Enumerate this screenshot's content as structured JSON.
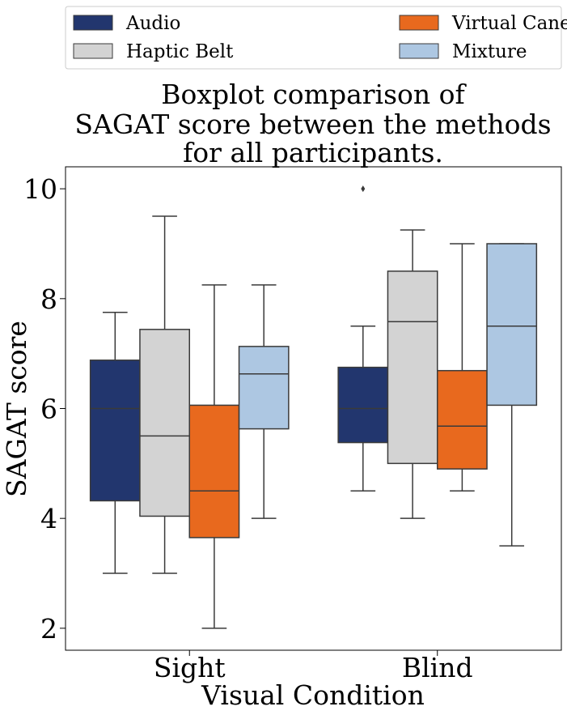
{
  "chart_data": {
    "type": "boxplot",
    "title_lines": [
      "Boxplot comparison of",
      "SAGAT score between the methods",
      "for all participants."
    ],
    "xlabel": "Visual Condition",
    "ylabel": "SAGAT score",
    "categories": [
      "Sight",
      "Blind"
    ],
    "ylim": [
      1.6,
      10.4
    ],
    "yticks": [
      2,
      4,
      6,
      8,
      10
    ],
    "grid": false,
    "legend_position": "top",
    "series": [
      {
        "name": "Audio",
        "color": "#22366e",
        "boxes": [
          {
            "whisker_low": 3.0,
            "q1": 4.32,
            "median": 6.0,
            "q3": 6.88,
            "whisker_high": 7.75,
            "outliers": []
          },
          {
            "whisker_low": 4.5,
            "q1": 5.38,
            "median": 6.0,
            "q3": 6.75,
            "whisker_high": 7.5,
            "outliers": [
              10.0
            ]
          }
        ]
      },
      {
        "name": "Haptic Belt",
        "color": "#d3d3d3",
        "boxes": [
          {
            "whisker_low": 3.0,
            "q1": 4.04,
            "median": 5.5,
            "q3": 7.44,
            "whisker_high": 9.5,
            "outliers": []
          },
          {
            "whisker_low": 4.0,
            "q1": 5.0,
            "median": 7.58,
            "q3": 8.5,
            "whisker_high": 9.25,
            "outliers": []
          }
        ]
      },
      {
        "name": "Virtual Cane",
        "color": "#e8691e",
        "boxes": [
          {
            "whisker_low": 2.0,
            "q1": 3.65,
            "median": 4.5,
            "q3": 6.06,
            "whisker_high": 8.25,
            "outliers": []
          },
          {
            "whisker_low": 4.5,
            "q1": 4.9,
            "median": 5.68,
            "q3": 6.69,
            "whisker_high": 9.0,
            "outliers": []
          }
        ]
      },
      {
        "name": "Mixture",
        "color": "#adc7e2",
        "boxes": [
          {
            "whisker_low": 4.0,
            "q1": 5.63,
            "median": 6.63,
            "q3": 7.13,
            "whisker_high": 8.25,
            "outliers": []
          },
          {
            "whisker_low": 3.5,
            "q1": 6.06,
            "median": 7.5,
            "q3": 9.0,
            "whisker_high": 9.0,
            "outliers": []
          }
        ]
      }
    ]
  }
}
